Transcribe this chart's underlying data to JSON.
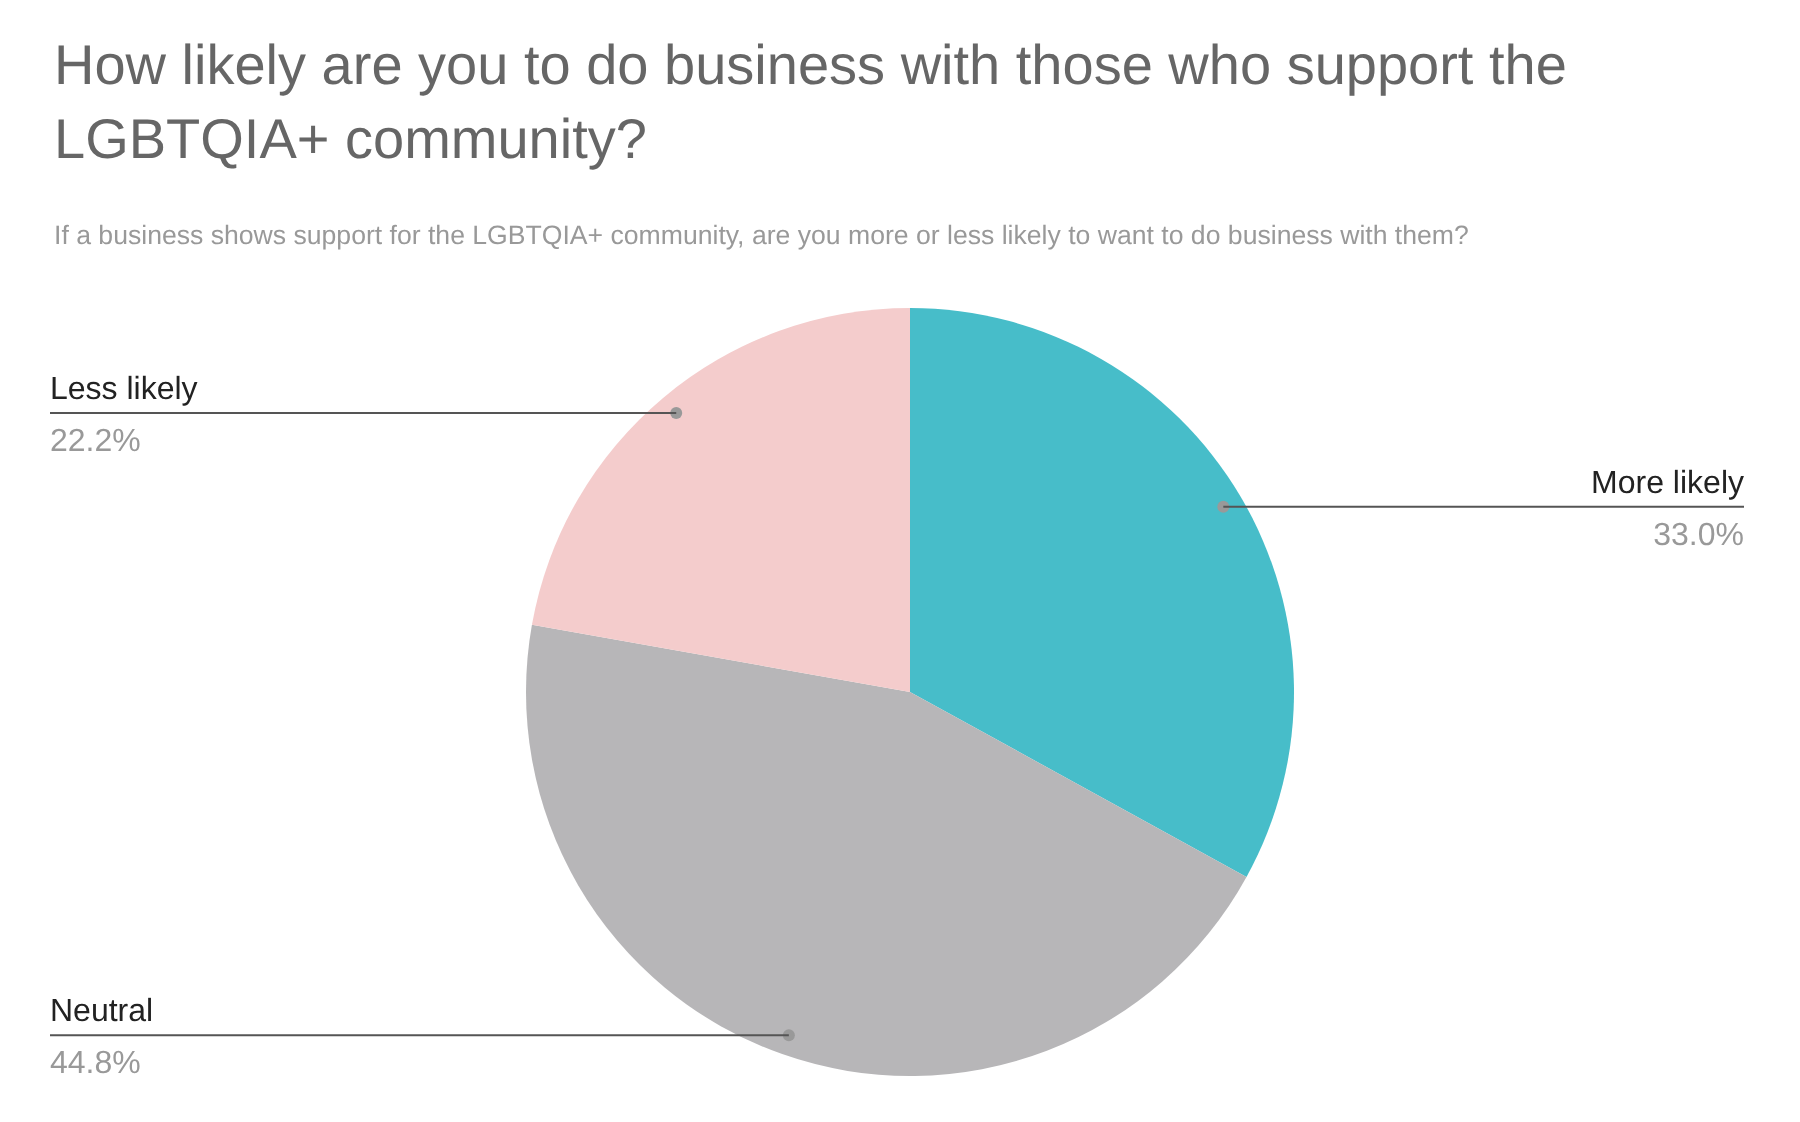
{
  "chart_data": {
    "type": "pie",
    "title": "How likely are you to do business with those who support the LGBTQIA+ community?",
    "subtitle": "If a business shows support for the LGBTQIA+ community, are you more or less likely to want to do business with them?",
    "categories": [
      "More likely",
      "Neutral",
      "Less likely"
    ],
    "values": [
      33.0,
      44.8,
      22.2
    ],
    "value_labels": [
      "33.0%",
      "44.8%",
      "22.2%"
    ],
    "colors": [
      "#47bdc9",
      "#b7b6b8",
      "#f4cccc"
    ],
    "legend": false
  }
}
